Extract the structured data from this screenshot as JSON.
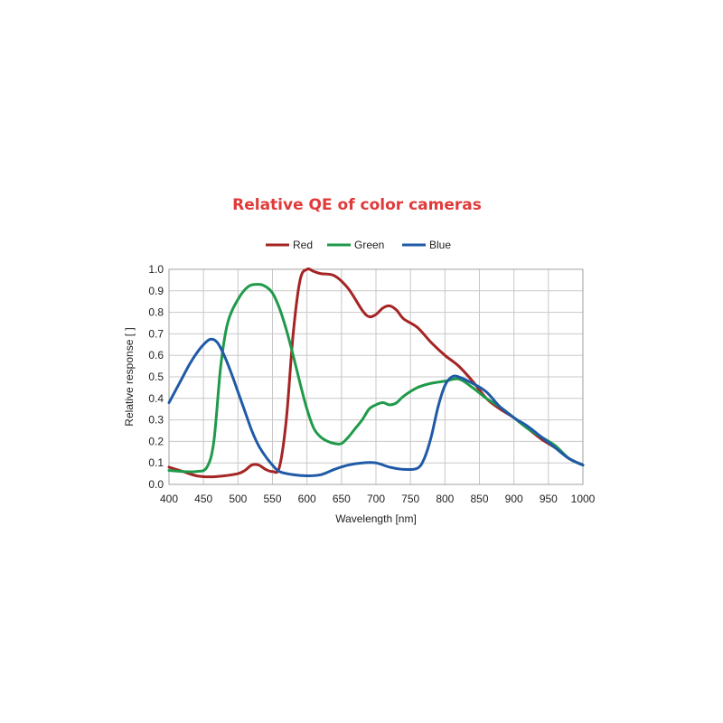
{
  "chart_data": {
    "type": "line",
    "title": "Relative QE of color cameras",
    "xlabel": "Wavelength [nm]",
    "ylabel": "Relative response [ ]",
    "xlim": [
      400,
      1000
    ],
    "ylim": [
      0,
      1
    ],
    "x_ticks": [
      400,
      450,
      500,
      550,
      600,
      650,
      700,
      750,
      800,
      850,
      900,
      950,
      1000
    ],
    "y_ticks": [
      "0.0",
      "0.1",
      "0.2",
      "0.3",
      "0.4",
      "0.5",
      "0.6",
      "0.7",
      "0.8",
      "0.9",
      "1.0"
    ],
    "grid": true,
    "legend_position": "top-center",
    "title_color": "#e03a3a",
    "series": [
      {
        "name": "Red",
        "color": "#a52424",
        "x": [
          400,
          420,
          440,
          460,
          480,
          500,
          510,
          520,
          530,
          540,
          550,
          560,
          570,
          580,
          590,
          600,
          610,
          620,
          640,
          660,
          680,
          690,
          700,
          710,
          720,
          730,
          740,
          760,
          780,
          800,
          820,
          840,
          860,
          880,
          900,
          920,
          940,
          960,
          980,
          1000
        ],
        "values": [
          0.08,
          0.06,
          0.04,
          0.035,
          0.04,
          0.05,
          0.065,
          0.09,
          0.09,
          0.07,
          0.06,
          0.08,
          0.3,
          0.7,
          0.95,
          1.0,
          0.99,
          0.98,
          0.97,
          0.91,
          0.81,
          0.78,
          0.79,
          0.82,
          0.83,
          0.81,
          0.77,
          0.73,
          0.66,
          0.6,
          0.55,
          0.48,
          0.4,
          0.35,
          0.31,
          0.26,
          0.21,
          0.17,
          0.12,
          0.09
        ]
      },
      {
        "name": "Green",
        "color": "#1f9a4a",
        "x": [
          400,
          420,
          440,
          455,
          465,
          475,
          485,
          500,
          515,
          530,
          540,
          550,
          560,
          570,
          580,
          590,
          600,
          610,
          620,
          630,
          640,
          650,
          660,
          670,
          680,
          690,
          700,
          710,
          720,
          730,
          740,
          760,
          780,
          800,
          820,
          840,
          860,
          880,
          900,
          920,
          940,
          960,
          980,
          1000
        ],
        "values": [
          0.065,
          0.06,
          0.06,
          0.08,
          0.2,
          0.55,
          0.75,
          0.86,
          0.92,
          0.93,
          0.92,
          0.89,
          0.82,
          0.72,
          0.6,
          0.47,
          0.35,
          0.26,
          0.22,
          0.2,
          0.19,
          0.19,
          0.22,
          0.26,
          0.3,
          0.35,
          0.37,
          0.38,
          0.37,
          0.38,
          0.41,
          0.45,
          0.47,
          0.48,
          0.49,
          0.45,
          0.4,
          0.36,
          0.31,
          0.26,
          0.22,
          0.18,
          0.12,
          0.09
        ]
      },
      {
        "name": "Blue",
        "color": "#1f5aa6",
        "x": [
          400,
          410,
          420,
          430,
          440,
          450,
          460,
          470,
          480,
          490,
          500,
          510,
          520,
          530,
          540,
          550,
          560,
          580,
          600,
          620,
          640,
          660,
          680,
          700,
          720,
          740,
          760,
          770,
          780,
          790,
          800,
          810,
          820,
          840,
          860,
          880,
          900,
          920,
          940,
          960,
          980,
          1000
        ],
        "values": [
          0.38,
          0.44,
          0.5,
          0.56,
          0.61,
          0.65,
          0.675,
          0.66,
          0.6,
          0.52,
          0.43,
          0.34,
          0.25,
          0.18,
          0.13,
          0.09,
          0.06,
          0.045,
          0.04,
          0.045,
          0.07,
          0.09,
          0.1,
          0.1,
          0.08,
          0.07,
          0.075,
          0.12,
          0.22,
          0.36,
          0.46,
          0.5,
          0.5,
          0.47,
          0.43,
          0.36,
          0.31,
          0.27,
          0.22,
          0.17,
          0.12,
          0.09
        ]
      }
    ]
  }
}
